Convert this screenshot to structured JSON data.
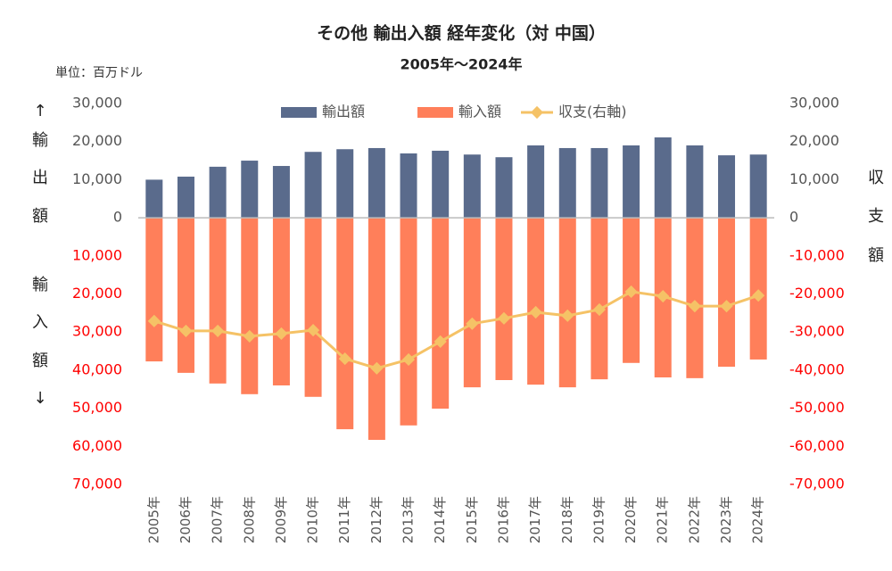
{
  "chart_data": {
    "type": "bar",
    "title": "その他 輸出入額 経年変化（対 中国）",
    "subtitle": "2005年～2024年",
    "unit_label": "単位：百万ドル",
    "y_label_top": "↑輸出額",
    "y_label_bottom": "輸入額↓",
    "y2_label": "収支額",
    "categories": [
      "2005年",
      "2006年",
      "2007年",
      "2008年",
      "2009年",
      "2010年",
      "2011年",
      "2012年",
      "2013年",
      "2014年",
      "2015年",
      "2016年",
      "2017年",
      "2018年",
      "2019年",
      "2020年",
      "2021年",
      "2022年",
      "2023年",
      "2024年"
    ],
    "series": [
      {
        "name": "輸出額",
        "color": "#5a6b8c",
        "values": [
          10000,
          10800,
          13400,
          15000,
          13600,
          17300,
          18000,
          18300,
          16900,
          17600,
          16600,
          15900,
          19000,
          18300,
          18300,
          19000,
          21100,
          19000,
          16400,
          16600
        ]
      },
      {
        "name": "輸入額",
        "color": "#ff7f5a",
        "values": [
          -37700,
          -40700,
          -43500,
          -46300,
          -44000,
          -47000,
          -55500,
          -58300,
          -54500,
          -50100,
          -44500,
          -42600,
          -43800,
          -44500,
          -42400,
          -38100,
          -41900,
          -42100,
          -39100,
          -37200
        ]
      },
      {
        "name": "収支(右軸)",
        "color": "#f5c266",
        "type": "line",
        "axis": "y2",
        "values": [
          -27100,
          -29700,
          -29700,
          -31100,
          -30400,
          -29500,
          -37000,
          -39500,
          -37200,
          -32500,
          -27800,
          -26400,
          -24800,
          -25700,
          -24100,
          -19400,
          -20600,
          -23200,
          -23200,
          -20400
        ]
      }
    ],
    "ylim": [
      -70000,
      30000
    ],
    "yticks": [
      {
        "value": 30000,
        "label": "30,000"
      },
      {
        "value": 20000,
        "label": "20,000"
      },
      {
        "value": 10000,
        "label": "10,000"
      },
      0,
      {
        "value": -10000,
        "label": "10,000"
      },
      {
        "value": -20000,
        "label": "20,000"
      },
      {
        "value": -30000,
        "label": "30,000"
      },
      {
        "value": -40000,
        "label": "40,000"
      },
      {
        "value": -50000,
        "label": "50,000"
      },
      {
        "value": -60000,
        "label": "60,000"
      },
      {
        "value": -70000,
        "label": "70,000"
      }
    ],
    "y2lim": [
      -70000,
      30000
    ],
    "y2ticks": [
      {
        "value": 30000,
        "label": "30,000"
      },
      {
        "value": 20000,
        "label": "20,000"
      },
      {
        "value": 10000,
        "label": "10,000"
      },
      0,
      {
        "value": -10000,
        "label": "-10,000"
      },
      {
        "value": -20000,
        "label": "-20,000"
      },
      {
        "value": -30000,
        "label": "-30,000"
      },
      {
        "value": -40000,
        "label": "-40,000"
      },
      {
        "value": -50000,
        "label": "-50,000"
      },
      {
        "value": -60000,
        "label": "-60,000"
      },
      {
        "value": -70000,
        "label": "-70,000"
      }
    ],
    "negative_tick_color": "#ff0000",
    "grid": false,
    "legend": "top"
  }
}
